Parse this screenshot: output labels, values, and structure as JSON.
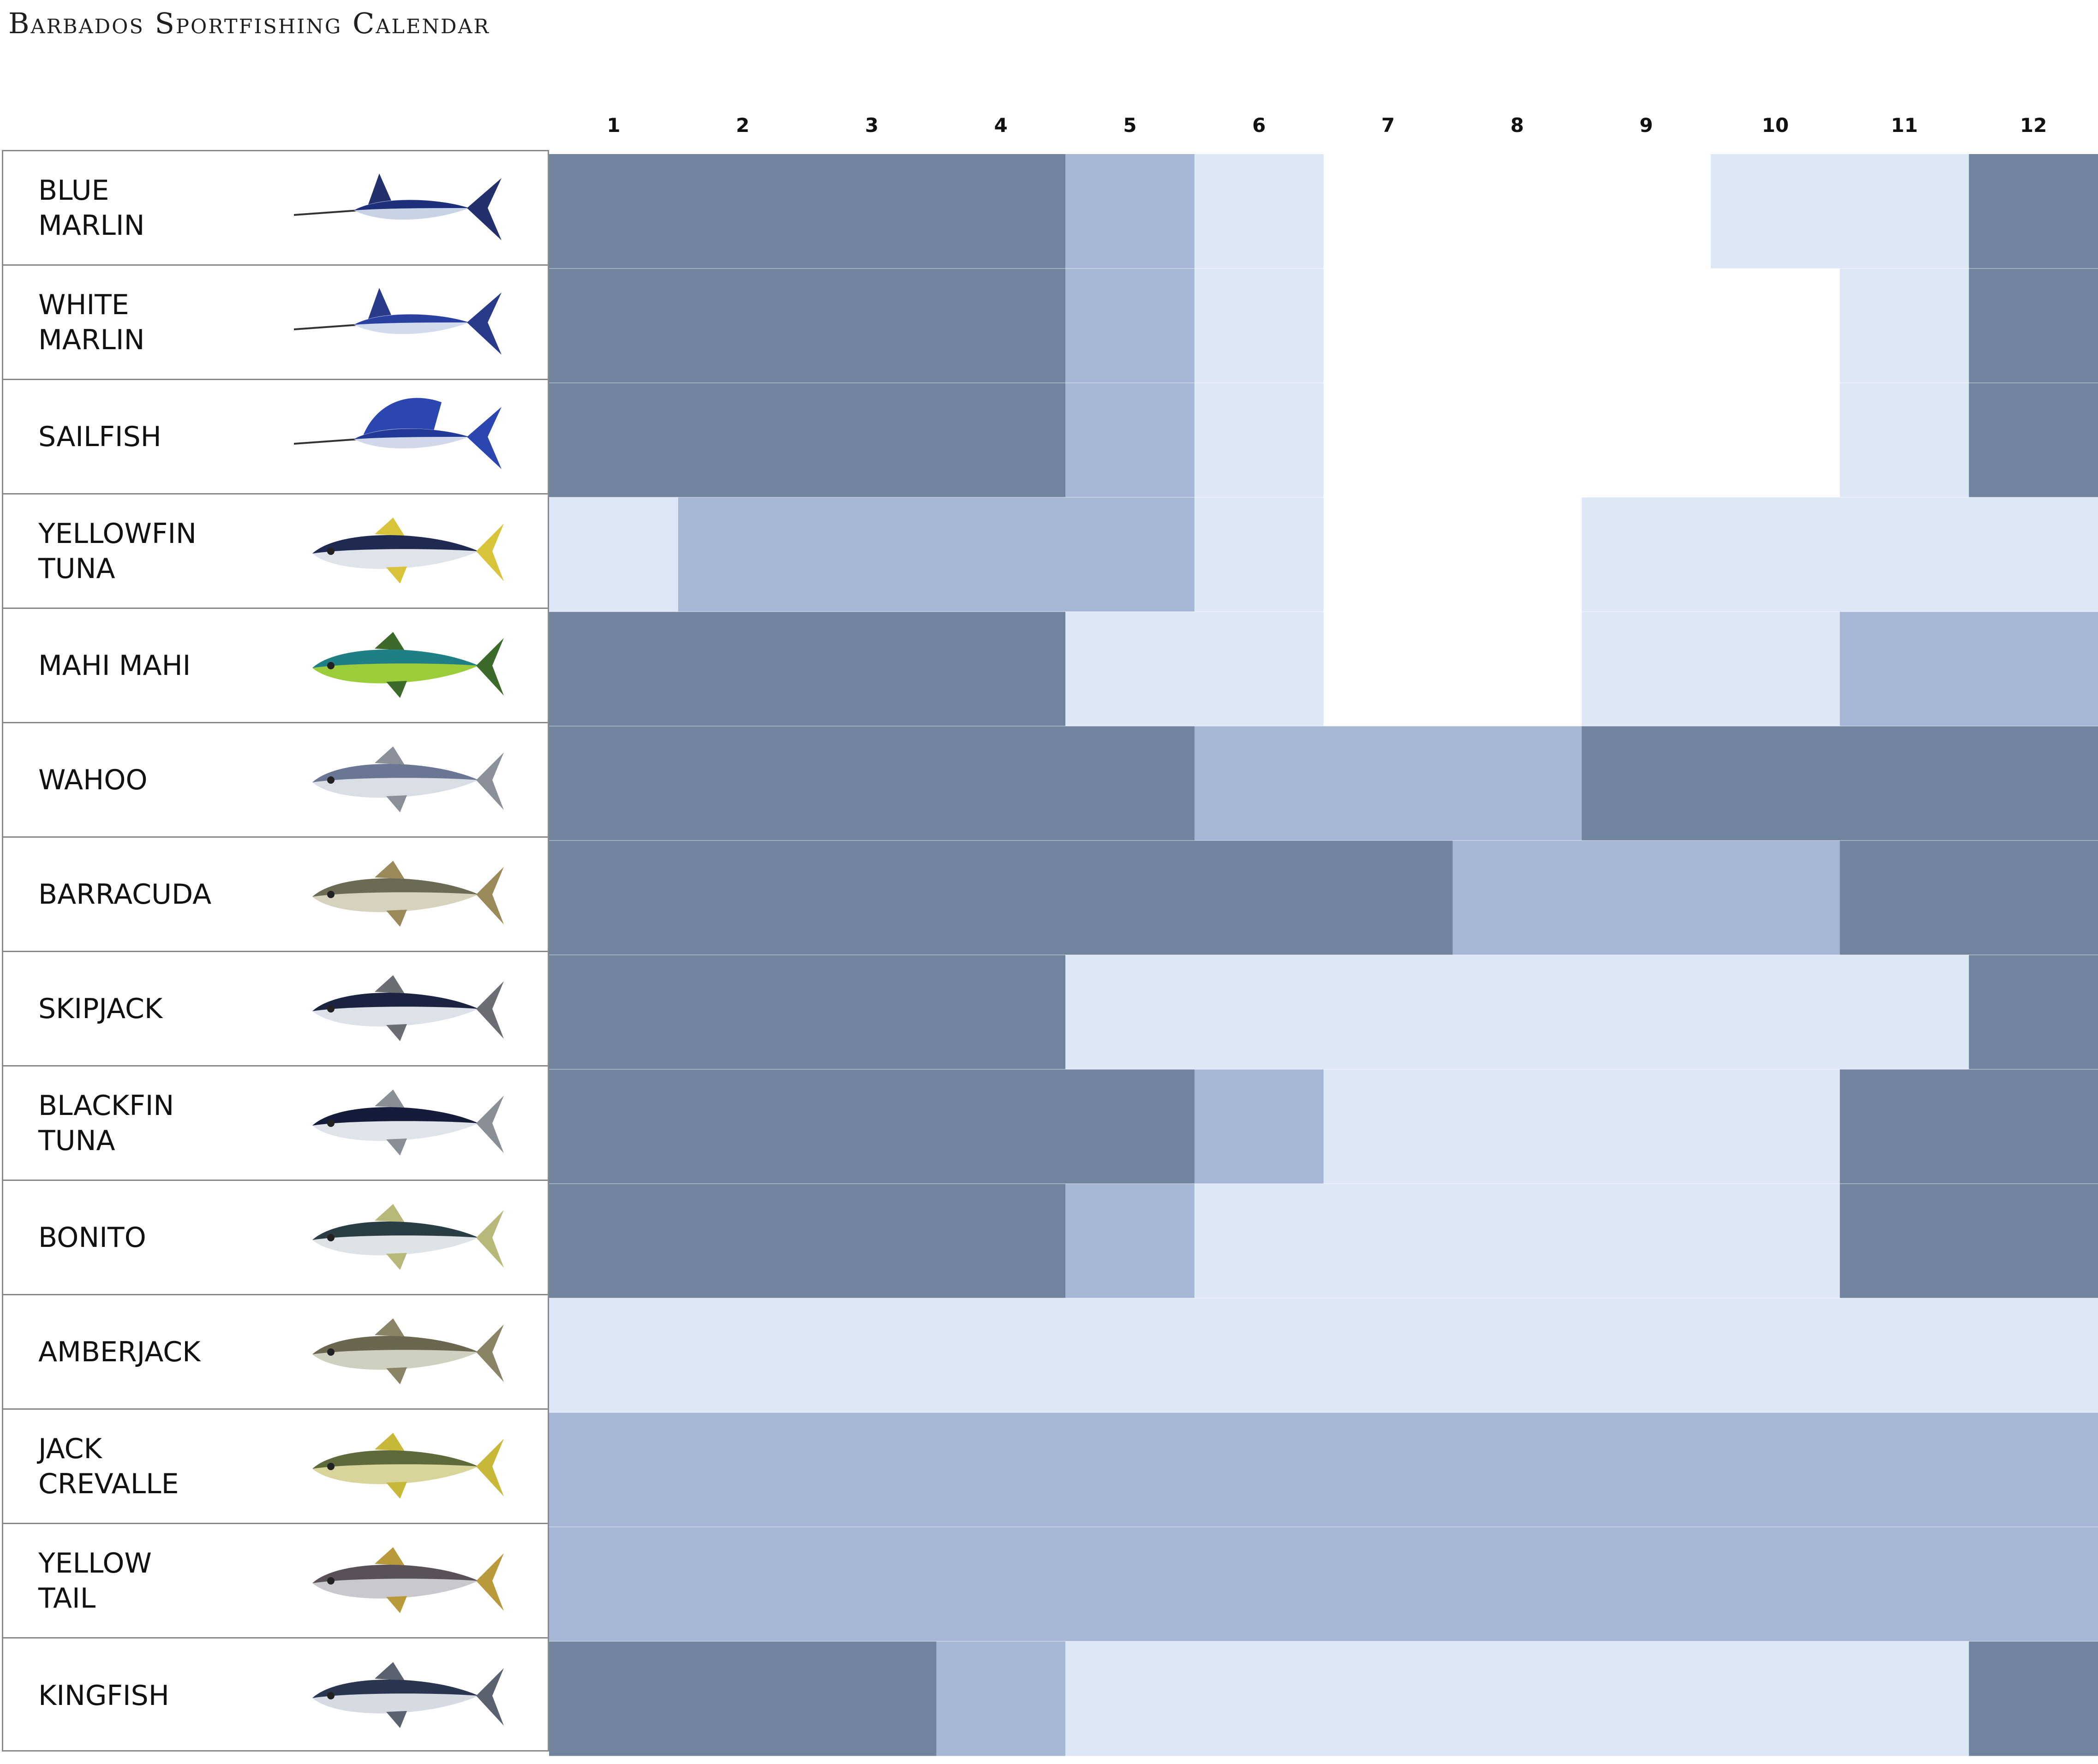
{
  "title": "Barbados Sportfishing Calendar",
  "chart_data": {
    "type": "heatmap",
    "columns": [
      "1",
      "2",
      "3",
      "4",
      "5",
      "6",
      "7",
      "8",
      "9",
      "10",
      "11",
      "12"
    ],
    "rows": [
      {
        "label": "BLUE\nMARLIN",
        "values": [
          3,
          3,
          3,
          3,
          2,
          1,
          0,
          0,
          0,
          1,
          1,
          3
        ]
      },
      {
        "label": "WHITE\nMARLIN",
        "values": [
          3,
          3,
          3,
          3,
          2,
          1,
          0,
          0,
          0,
          0,
          1,
          3
        ]
      },
      {
        "label": "SAILFISH",
        "values": [
          3,
          3,
          3,
          3,
          2,
          1,
          0,
          0,
          0,
          0,
          1,
          3
        ]
      },
      {
        "label": "YELLOWFIN\nTUNA",
        "values": [
          1,
          2,
          2,
          2,
          2,
          1,
          0,
          0,
          1,
          1,
          1,
          1
        ]
      },
      {
        "label": "MAHI MAHI",
        "values": [
          3,
          3,
          3,
          3,
          1,
          1,
          0,
          0,
          1,
          1,
          2,
          2
        ]
      },
      {
        "label": "WAHOO",
        "values": [
          3,
          3,
          3,
          3,
          3,
          2,
          2,
          2,
          3,
          3,
          3,
          3
        ]
      },
      {
        "label": "BARRACUDA",
        "values": [
          3,
          3,
          3,
          3,
          3,
          3,
          3,
          2,
          2,
          2,
          3,
          3
        ]
      },
      {
        "label": "SKIPJACK",
        "values": [
          3,
          3,
          3,
          3,
          1,
          1,
          1,
          1,
          1,
          1,
          1,
          3
        ]
      },
      {
        "label": "BLACKFIN\nTUNA",
        "values": [
          3,
          3,
          3,
          3,
          3,
          2,
          1,
          1,
          1,
          1,
          3,
          3
        ]
      },
      {
        "label": "BONITO",
        "values": [
          3,
          3,
          3,
          3,
          2,
          1,
          1,
          1,
          1,
          1,
          3,
          3
        ]
      },
      {
        "label": "AMBERJACK",
        "values": [
          1,
          1,
          1,
          1,
          1,
          1,
          1,
          1,
          1,
          1,
          1,
          1
        ]
      },
      {
        "label": "JACK\nCREVALLE",
        "values": [
          2,
          2,
          2,
          2,
          2,
          2,
          2,
          2,
          2,
          2,
          2,
          2
        ]
      },
      {
        "label": "YELLOW\nTAIL",
        "values": [
          2,
          2,
          2,
          2,
          2,
          2,
          2,
          2,
          2,
          2,
          2,
          2
        ]
      },
      {
        "label": "KINGFISH",
        "values": [
          3,
          3,
          3,
          2,
          1,
          1,
          1,
          1,
          1,
          1,
          1,
          3
        ]
      }
    ],
    "level_colors": [
      "#ffffff",
      "#dde7f6",
      "#a6b6d4",
      "#72839e"
    ],
    "fish_icons": [
      "blue-marlin-icon",
      "white-marlin-icon",
      "sailfish-icon",
      "yellowfin-tuna-icon",
      "mahi-mahi-icon",
      "wahoo-icon",
      "barracuda-icon",
      "skipjack-icon",
      "blackfin-tuna-icon",
      "bonito-icon",
      "amberjack-icon",
      "jack-crevalle-icon",
      "yellowtail-icon",
      "kingfish-icon"
    ]
  }
}
